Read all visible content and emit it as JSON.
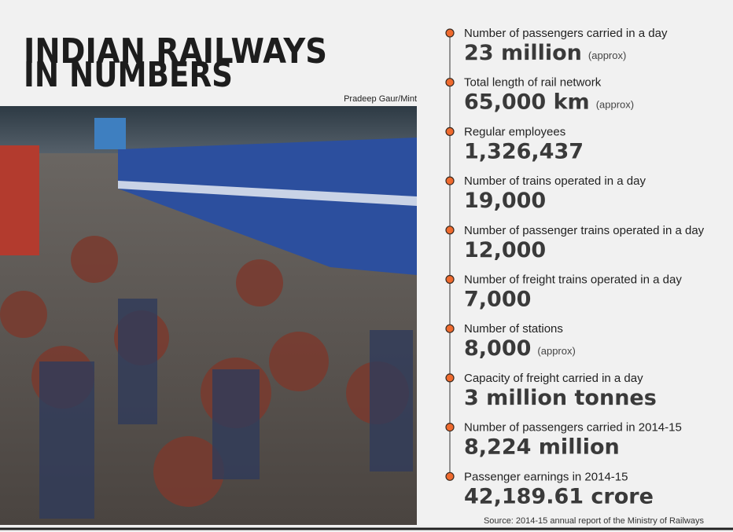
{
  "header": {
    "title": [
      "INDIAN RAILWAYS",
      "IN NUMBERS"
    ],
    "photo_credit": "Pradeep Gaur/Mint"
  },
  "items": [
    {
      "label": "Number of passengers carried in a day",
      "value": "23 million",
      "note": "(approx)"
    },
    {
      "label": "Total length of rail network",
      "value": "65,000 km",
      "note": "(approx)"
    },
    {
      "label": "Regular employees",
      "value": "1,326,437"
    },
    {
      "label": "Number of trains operated in a day",
      "value": "19,000"
    },
    {
      "label": "Number of passenger trains operated in a day",
      "value": "12,000"
    },
    {
      "label": "Number of freight trains operated in a day",
      "value": "7,000"
    },
    {
      "label": "Number of stations",
      "value": "8,000",
      "note": "(approx)"
    },
    {
      "label": "Capacity of freight carried in a day",
      "value": "3 million tonnes"
    },
    {
      "label": "Number of passengers carried in 2014-15",
      "value": "8,224 million"
    },
    {
      "label": "Passenger earnings in 2014-15",
      "value": "42,189.61 crore"
    }
  ],
  "source": "Source: 2014-15 annual report of the Ministry of Railways"
}
